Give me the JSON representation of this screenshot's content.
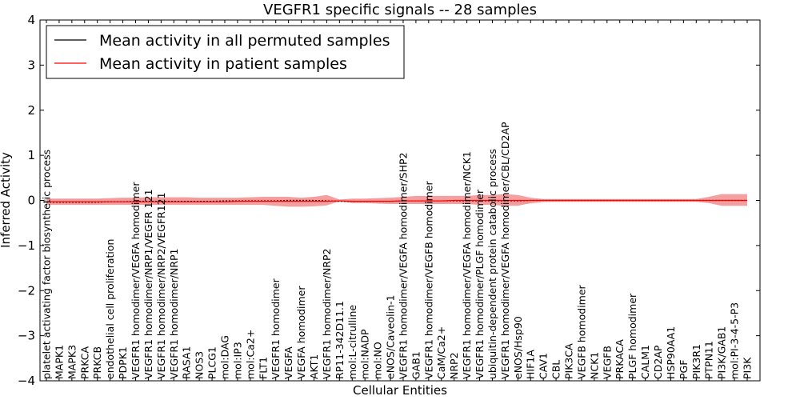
{
  "chart_data": {
    "type": "line",
    "title": "VEGFR1 specific signals -- 28 samples",
    "xlabel": "Cellular Entities",
    "ylabel": "Inferred Activity",
    "ylim": [
      -4,
      4
    ],
    "yticks": [
      -4,
      -3,
      -2,
      -1,
      0,
      1,
      2,
      3,
      4
    ],
    "ytick_labels": [
      "−4",
      "−3",
      "−2",
      "−1",
      "0",
      "1",
      "2",
      "3",
      "4"
    ],
    "grid": false,
    "legend_position": "top-left",
    "categories": [
      "platelet activating factor biosynthetic process",
      "MAPK1",
      "MAPK3",
      "PRKCA",
      "PRKCB",
      "endothelial cell proliferation",
      "PDPK1",
      "VEGFR1 homodimer/VEGFA homodimer",
      "VEGFR1 homodimer/NRP1/VEGFR 121",
      "VEGFR1 homodimer/NRP2/VEGFR121",
      "VEGFR1 homodimer/NRP1",
      "RASA1",
      "NOS3",
      "PLCG1",
      "mol:DAG",
      "mol:IP3",
      "mol:Ca2+",
      "FLT1",
      "VEGFR1 homodimer",
      "VEGFA",
      "VEGFA homodimer",
      "AKT1",
      "VEGFR1 homodimer/NRP2",
      "RP11-342D11.1",
      "mol:L-citrulline",
      "mol:NADP",
      "mol:NO",
      "eNOS/Caveolin-1",
      "VEGFR1 homodimer/VEGFA homodimer/SHP2",
      "GAB1",
      "VEGFR1 homodimer/VEGFB homodimer",
      "CaM/Ca2+",
      "NRP2",
      "VEGFR1 homodimer/VEGFA homodimer/NCK1",
      "VEGFR1 homodimer/PLGF homodimer",
      "ubiquitin-dependent protein catabolic process",
      "VEGFR1 homodimer/VEGFA homodimer/CBL/CD2AP",
      "eNOS/Hsp90",
      "HIF1A",
      "CAV1",
      "CBL",
      "PIK3CA",
      "VEGFB homodimer",
      "NCK1",
      "VEGFB",
      "PRKACA",
      "PLGF homodimer",
      "CALM1",
      "CD2AP",
      "HSP90AA1",
      "PGF",
      "PIK3R1",
      "PTPN11",
      "PI3K/GAB1",
      "mol:PI-3-4-5-P3",
      "PI3K"
    ],
    "series": [
      {
        "name": "Mean activity in all permuted samples",
        "color": "#000000",
        "values": [
          -0.04,
          -0.04,
          -0.04,
          -0.04,
          -0.04,
          -0.03,
          -0.03,
          -0.02,
          -0.02,
          -0.02,
          -0.02,
          -0.02,
          -0.02,
          -0.02,
          -0.01,
          -0.01,
          -0.01,
          -0.01,
          -0.01,
          0,
          0,
          0,
          -0.01,
          -0.02,
          -0.02,
          -0.02,
          -0.02,
          -0.02,
          -0.01,
          -0.01,
          -0.01,
          -0.01,
          -0.01,
          -0.01,
          -0.01,
          -0.01,
          -0.01,
          -0.01,
          0,
          0,
          0,
          0,
          0,
          0,
          0,
          0,
          0,
          0,
          0,
          0,
          0,
          0,
          0,
          0,
          0,
          0
        ],
        "band_lower": [
          -0.07,
          -0.07,
          -0.07,
          -0.07,
          -0.07,
          -0.06,
          -0.06,
          -0.06,
          -0.06,
          -0.06,
          -0.06,
          -0.06,
          -0.06,
          -0.06,
          -0.05,
          -0.05,
          -0.05,
          -0.05,
          -0.05,
          -0.06,
          -0.07,
          -0.07,
          -0.06,
          -0.05,
          -0.05,
          -0.05,
          -0.06,
          -0.06,
          -0.06,
          -0.06,
          -0.06,
          -0.06,
          -0.06,
          -0.06,
          -0.06,
          -0.06,
          -0.07,
          -0.08,
          -0.08,
          -0.05,
          -0.04,
          -0.04,
          -0.04,
          -0.04,
          -0.04,
          -0.04,
          -0.04,
          -0.04,
          -0.04,
          -0.04,
          -0.04,
          -0.04,
          -0.04,
          -0.04,
          -0.04,
          -0.04
        ],
        "band_upper": [
          0.03,
          0.03,
          0.03,
          0.03,
          0.03,
          0.03,
          0.03,
          0.03,
          0.03,
          0.03,
          0.03,
          0.03,
          0.03,
          0.03,
          0.03,
          0.03,
          0.03,
          0.03,
          0.03,
          0.03,
          0.03,
          0.03,
          0.03,
          0.02,
          0.02,
          0.02,
          0.02,
          0.02,
          0.02,
          0.02,
          0.02,
          0.02,
          0.02,
          0.02,
          0.02,
          0.02,
          0.02,
          0.02,
          0.02,
          0.02,
          0.02,
          0.02,
          0.02,
          0.02,
          0.02,
          0.02,
          0.02,
          0.02,
          0.02,
          0.02,
          0.02,
          0.02,
          0.02,
          0.02,
          0.02,
          0.02
        ]
      },
      {
        "name": "Mean activity in patient samples",
        "color": "#ff0000",
        "band_color": "#f08080",
        "values": [
          -0.03,
          -0.03,
          -0.03,
          -0.03,
          -0.03,
          -0.03,
          -0.03,
          -0.03,
          -0.03,
          -0.03,
          -0.03,
          -0.03,
          -0.03,
          -0.03,
          -0.03,
          -0.02,
          -0.02,
          -0.02,
          -0.02,
          -0.02,
          -0.02,
          -0.02,
          -0.02,
          -0.01,
          -0.02,
          -0.02,
          -0.02,
          -0.02,
          -0.01,
          -0.01,
          -0.01,
          -0.01,
          0,
          0,
          0,
          0,
          0,
          0,
          0,
          0,
          0,
          0,
          0,
          0,
          0,
          0,
          0,
          0,
          0,
          0,
          0,
          0,
          0,
          0,
          0,
          0
        ],
        "band_lower": [
          -0.1,
          -0.1,
          -0.1,
          -0.1,
          -0.1,
          -0.1,
          -0.1,
          -0.1,
          -0.1,
          -0.1,
          -0.1,
          -0.1,
          -0.1,
          -0.1,
          -0.1,
          -0.1,
          -0.1,
          -0.1,
          -0.12,
          -0.14,
          -0.14,
          -0.13,
          -0.11,
          -0.02,
          -0.06,
          -0.06,
          -0.07,
          -0.08,
          -0.08,
          -0.08,
          -0.08,
          -0.08,
          -0.08,
          -0.08,
          -0.1,
          -0.1,
          -0.12,
          -0.12,
          -0.06,
          -0.03,
          -0.03,
          -0.03,
          -0.03,
          -0.03,
          -0.03,
          -0.03,
          -0.03,
          -0.03,
          -0.03,
          -0.03,
          -0.03,
          -0.03,
          -0.06,
          -0.12,
          -0.12,
          -0.12
        ],
        "band_upper": [
          0.04,
          0.04,
          0.04,
          0.04,
          0.04,
          0.05,
          0.06,
          0.06,
          0.07,
          0.07,
          0.07,
          0.07,
          0.06,
          0.06,
          0.06,
          0.06,
          0.07,
          0.08,
          0.08,
          0.08,
          0.06,
          0.08,
          0.12,
          0.02,
          0.04,
          0.04,
          0.05,
          0.06,
          0.08,
          0.1,
          0.1,
          0.1,
          0.1,
          0.1,
          0.12,
          0.12,
          0.14,
          0.12,
          0.06,
          0.03,
          0.03,
          0.03,
          0.03,
          0.03,
          0.03,
          0.03,
          0.03,
          0.03,
          0.03,
          0.03,
          0.03,
          0.03,
          0.08,
          0.14,
          0.14,
          0.14
        ]
      }
    ]
  }
}
